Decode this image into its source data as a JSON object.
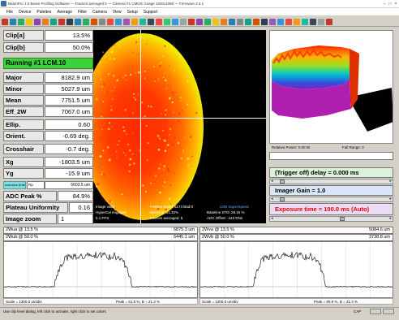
{
  "window": {
    "title": "BeamPro 1.0 Beam Profiling Software — Frames averaged 5 — Camera #1 CMOS: image 1920x1080 — Firmware 2.3.1"
  },
  "menu": [
    "File",
    "Device",
    "Palettes",
    "Average",
    "Filter",
    "Camera",
    "View",
    "Setup",
    "Support"
  ],
  "toolbar_colors": [
    "#c0392b",
    "#2980b9",
    "#27ae60",
    "#f1c40f",
    "#8e44ad",
    "#e67e22",
    "#16a085",
    "#c0392b",
    "#2c3e50",
    "#2980b9",
    "#27ae60",
    "#d35400",
    "#7f8c8d",
    "#e74c3c",
    "#3498db",
    "#9b59b6",
    "#f39c12",
    "#1abc9c",
    "#34495e",
    "#e74c3c",
    "#2ecc71",
    "#3498db",
    "#95a5a6",
    "#c0392b",
    "#8e44ad",
    "#27ae60",
    "#f1c40f",
    "#e67e22",
    "#2980b9",
    "#7f8c8d",
    "#16a085",
    "#d35400",
    "#2c3e50",
    "#9b59b6",
    "#3498db",
    "#e74c3c",
    "#f39c12",
    "#1abc9c",
    "#34495e",
    "#95a5a6",
    "#c0392b"
  ],
  "metrics": {
    "clip_a": {
      "label": "Clip[a]",
      "value": "13.5%"
    },
    "clip_b": {
      "label": "Clip[b]",
      "value": "50.0%"
    },
    "status": "Running #1 LCM.10",
    "major": {
      "label": "Major",
      "value": "8182.9 um"
    },
    "minor": {
      "label": "Minor",
      "value": "5027.9 um"
    },
    "mean": {
      "label": "Mean",
      "value": "7751.5 um"
    },
    "eff_2w": {
      "label": "Eff_2W",
      "value": "7067.0 um"
    },
    "ellip": {
      "label": "Ellip.",
      "value": "0.60"
    },
    "orient": {
      "label": "Orient.",
      "value": "-0.69 deg."
    },
    "crosshair": {
      "label": "Crosshair",
      "value": "-0.7 deg."
    },
    "xg": {
      "label": "Xg",
      "value": "-1803.5 um"
    },
    "yg": {
      "label": "Yg",
      "value": "-15.9 um"
    },
    "ind_a": "Inclusion (Interval)",
    "ind_b": "Rp",
    "ind_c": "5603.5 um",
    "adc_peak": {
      "label": "ADC Peak %",
      "value": "84.9%"
    },
    "plateau": {
      "label": "Plateau Uniformity",
      "value": "0.16"
    },
    "image_zoom": {
      "label": "Image zoom",
      "value": "1"
    }
  },
  "beam_info": {
    "left_1": "Image valid",
    "left_2": "HyperCal engaged",
    "left_3": "5.1 FPS",
    "mid_1": "Frames Good: 5174 Bad:0",
    "mid_2": "Baseline: 31.32%",
    "mid_3": "Frames averaged: 5",
    "mid_1b": "USB SuperSpeed",
    "right_2": "Baseline STD: 28.15 %",
    "right_3": "ADC Offset: -443 DNs"
  },
  "view3d": {
    "relative_power": "Relative Power: 0.00 W",
    "full_range": "Full Range: 2"
  },
  "controls": {
    "trigger": "(Trigger off) delay = 0.000 ms",
    "gain": "Imager Gain = 1.0",
    "exposure": "Exposure time = 100.0 ms (Auto)",
    "exposure_color": "#e8000b",
    "trigger_slider_fraction": 0.02,
    "gain_slider_fraction": 0.02,
    "exposure_slider_fraction": 0.6
  },
  "profile_u": {
    "row1": {
      "label": "2Wua @ 13.5 %",
      "value": "6875.3 um"
    },
    "row2": {
      "label": "2Wub @ 50.0 %",
      "value": "6445.1 um"
    },
    "scale": "Scale = 1300.0 um/div",
    "peak": "Peak = 61.5 %, B = 21.3 %"
  },
  "profile_v": {
    "row1": {
      "label": "2Wva @ 13.5 %",
      "value": "5084.6 um"
    },
    "row2": {
      "label": "2Wvb @ 50.0 %",
      "value": "3738.8 um"
    },
    "scale": "Scale = 1300.0 um/div",
    "peak": "Peak = 90.9 %, B = 21.3 %"
  },
  "statusbar": {
    "text": "Use clip level dialog, left click to activate, right click to set colors",
    "right": "CAP"
  }
}
